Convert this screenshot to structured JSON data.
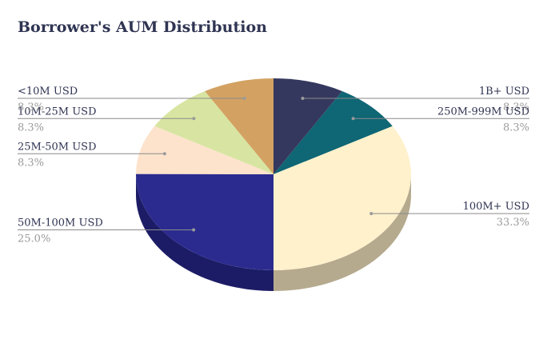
{
  "chart_data": {
    "type": "pie",
    "title": "Borrower's AUM Distribution",
    "slices": [
      {
        "label": "1B+ USD",
        "pct_text": "8.3%",
        "value": 8.3,
        "color": "#35385e",
        "side_color": "#1e2040"
      },
      {
        "label": "250M-999M USD",
        "pct_text": "8.3%",
        "value": 8.3,
        "color": "#0f6674",
        "side_color": "#0a4650"
      },
      {
        "label": "100M+ USD",
        "pct_text": "33.3%",
        "value": 33.3,
        "color": "#fff1cc",
        "side_color": "#b5aa8e"
      },
      {
        "label": "50M-100M USD",
        "pct_text": "25.0%",
        "value": 25.0,
        "color": "#2b2b8f",
        "side_color": "#1c1c66"
      },
      {
        "label": "25M-50M USD",
        "pct_text": "8.3%",
        "value": 8.3,
        "color": "#fde3cc",
        "side_color": "#c6b19f"
      },
      {
        "label": "10M-25M USD",
        "pct_text": "8.3%",
        "value": 8.3,
        "color": "#d8e5a2",
        "side_color": "#a6b27c"
      },
      {
        "label": "<10M USD",
        "pct_text": "8.3%",
        "value": 8.3,
        "color": "#d3a262",
        "side_color": "#a37c49"
      }
    ]
  }
}
